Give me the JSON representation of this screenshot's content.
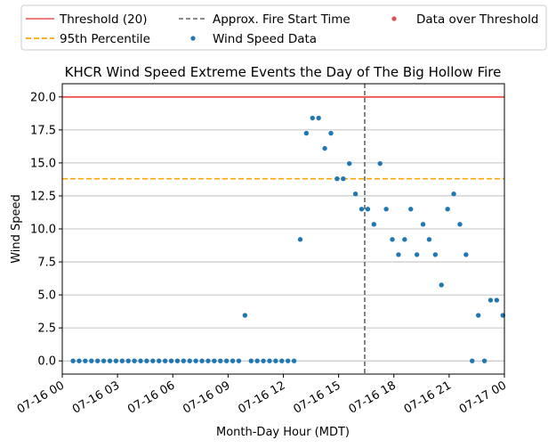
{
  "chart_data": {
    "type": "scatter",
    "title": "KHCR Wind Speed Extreme Events the Day of The Big Hollow Fire",
    "xlabel": "Month-Day Hour (MDT)",
    "ylabel": "Wind Speed",
    "xlim": [
      "07-16 00:00",
      "07-17 00:00"
    ],
    "ylim": [
      -1,
      21
    ],
    "x_ticks": [
      "07-16 00",
      "07-16 03",
      "07-16 06",
      "07-16 09",
      "07-16 12",
      "07-16 15",
      "07-16 18",
      "07-16 21",
      "07-17 00"
    ],
    "y_ticks": [
      "0.0",
      "2.5",
      "5.0",
      "7.5",
      "10.0",
      "12.5",
      "15.0",
      "17.5",
      "20.0"
    ],
    "grid": "y-axis horizontal lines",
    "legend_position": "top, above plot, 3 columns",
    "threshold": {
      "label": "Threshold (20)",
      "value": 20,
      "color": "#ee5a5a"
    },
    "percentile95": {
      "label": "95th Percentile",
      "value": 13.8,
      "color": "#ffa500"
    },
    "fire_start": {
      "label": "Approx. Fire Start Time",
      "x": "07-16 16:25",
      "color": "#444444"
    },
    "series": [
      {
        "name": "Wind Speed Data",
        "color": "#1f77b4",
        "points": [
          [
            "07-16 00:35",
            0
          ],
          [
            "07-16 00:55",
            0
          ],
          [
            "07-16 01:15",
            0
          ],
          [
            "07-16 01:35",
            0
          ],
          [
            "07-16 01:55",
            0
          ],
          [
            "07-16 02:15",
            0
          ],
          [
            "07-16 02:35",
            0
          ],
          [
            "07-16 02:55",
            0
          ],
          [
            "07-16 03:15",
            0
          ],
          [
            "07-16 03:35",
            0
          ],
          [
            "07-16 03:55",
            0
          ],
          [
            "07-16 04:15",
            0
          ],
          [
            "07-16 04:35",
            0
          ],
          [
            "07-16 04:55",
            0
          ],
          [
            "07-16 05:15",
            0
          ],
          [
            "07-16 05:35",
            0
          ],
          [
            "07-16 05:55",
            0
          ],
          [
            "07-16 06:15",
            0
          ],
          [
            "07-16 06:35",
            0
          ],
          [
            "07-16 06:55",
            0
          ],
          [
            "07-16 07:15",
            0
          ],
          [
            "07-16 07:35",
            0
          ],
          [
            "07-16 07:55",
            0
          ],
          [
            "07-16 08:15",
            0
          ],
          [
            "07-16 08:35",
            0
          ],
          [
            "07-16 08:55",
            0
          ],
          [
            "07-16 09:15",
            0
          ],
          [
            "07-16 09:35",
            0
          ],
          [
            "07-16 09:55",
            3.45
          ],
          [
            "07-16 10:15",
            0
          ],
          [
            "07-16 10:35",
            0
          ],
          [
            "07-16 10:55",
            0
          ],
          [
            "07-16 11:15",
            0
          ],
          [
            "07-16 11:35",
            0
          ],
          [
            "07-16 11:55",
            0
          ],
          [
            "07-16 12:15",
            0
          ],
          [
            "07-16 12:35",
            0
          ],
          [
            "07-16 12:55",
            9.2
          ],
          [
            "07-16 13:15",
            17.25
          ],
          [
            "07-16 13:35",
            18.4
          ],
          [
            "07-16 13:55",
            18.4
          ],
          [
            "07-16 14:15",
            16.1
          ],
          [
            "07-16 14:35",
            17.25
          ],
          [
            "07-16 14:55",
            13.8
          ],
          [
            "07-16 15:15",
            13.8
          ],
          [
            "07-16 15:35",
            14.95
          ],
          [
            "07-16 15:55",
            12.65
          ],
          [
            "07-16 16:15",
            11.5
          ],
          [
            "07-16 16:35",
            11.5
          ],
          [
            "07-16 16:55",
            10.35
          ],
          [
            "07-16 17:15",
            14.95
          ],
          [
            "07-16 17:35",
            11.5
          ],
          [
            "07-16 17:55",
            9.2
          ],
          [
            "07-16 18:15",
            8.05
          ],
          [
            "07-16 18:35",
            9.2
          ],
          [
            "07-16 18:55",
            11.5
          ],
          [
            "07-16 19:15",
            8.05
          ],
          [
            "07-16 19:35",
            10.35
          ],
          [
            "07-16 19:55",
            9.2
          ],
          [
            "07-16 20:15",
            8.05
          ],
          [
            "07-16 20:35",
            5.75
          ],
          [
            "07-16 20:55",
            11.5
          ],
          [
            "07-16 21:15",
            12.65
          ],
          [
            "07-16 21:35",
            10.35
          ],
          [
            "07-16 21:55",
            8.05
          ],
          [
            "07-16 22:15",
            0
          ],
          [
            "07-16 22:35",
            3.45
          ],
          [
            "07-16 22:55",
            0
          ],
          [
            "07-16 23:15",
            4.6
          ],
          [
            "07-16 23:35",
            4.6
          ],
          [
            "07-16 23:55",
            3.45
          ]
        ]
      },
      {
        "name": "Data over Threshold",
        "color": "#e05050",
        "points": []
      }
    ]
  }
}
